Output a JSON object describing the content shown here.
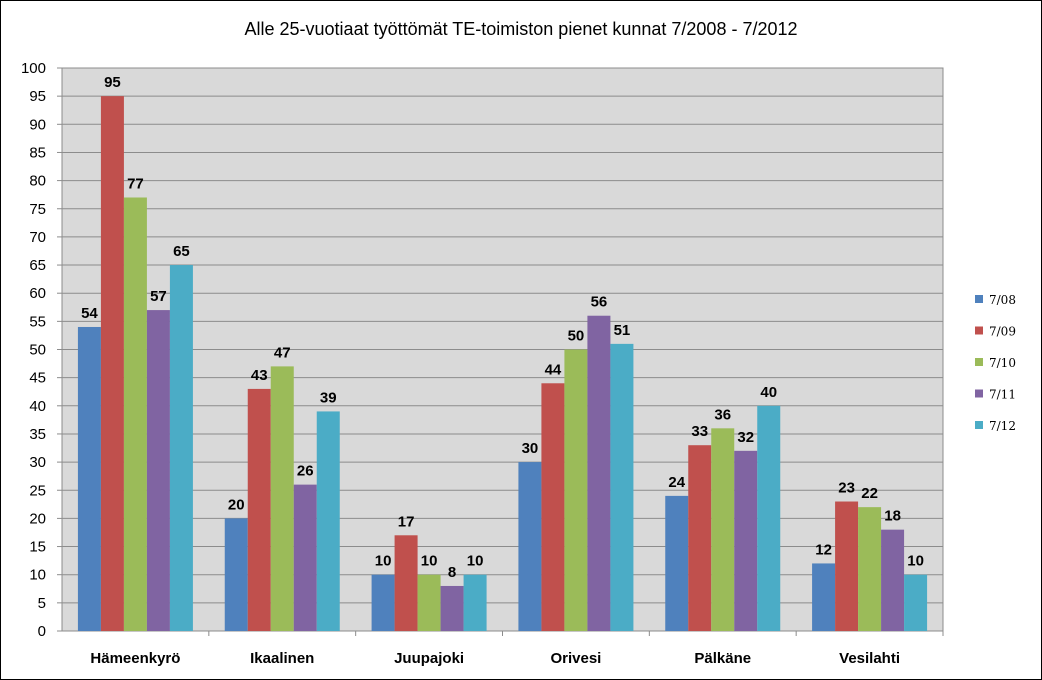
{
  "chart_data": {
    "type": "bar",
    "title": "Alle 25-vuotiaat työttömät TE-toimiston pienet kunnat 7/2008 - 7/2012",
    "xlabel": "",
    "ylabel": "",
    "ylim": [
      0,
      100
    ],
    "ytick_step": 5,
    "grid": true,
    "legend": "right",
    "categories": [
      "Hämeenkyrö",
      "Ikaalinen",
      "Juupajoki",
      "Orivesi",
      "Pälkäne",
      "Vesilahti"
    ],
    "series": [
      {
        "name": "7/08",
        "color": "#4F81BD",
        "values": [
          54,
          20,
          10,
          30,
          24,
          12
        ]
      },
      {
        "name": "7/09",
        "color": "#C0504D",
        "values": [
          95,
          43,
          17,
          44,
          33,
          23
        ]
      },
      {
        "name": "7/10",
        "color": "#9BBB59",
        "values": [
          77,
          47,
          10,
          50,
          36,
          22
        ]
      },
      {
        "name": "7/11",
        "color": "#8064A2",
        "values": [
          57,
          26,
          8,
          56,
          32,
          18
        ]
      },
      {
        "name": "7/12",
        "color": "#4BACC6",
        "values": [
          65,
          39,
          10,
          51,
          40,
          10
        ]
      }
    ]
  }
}
